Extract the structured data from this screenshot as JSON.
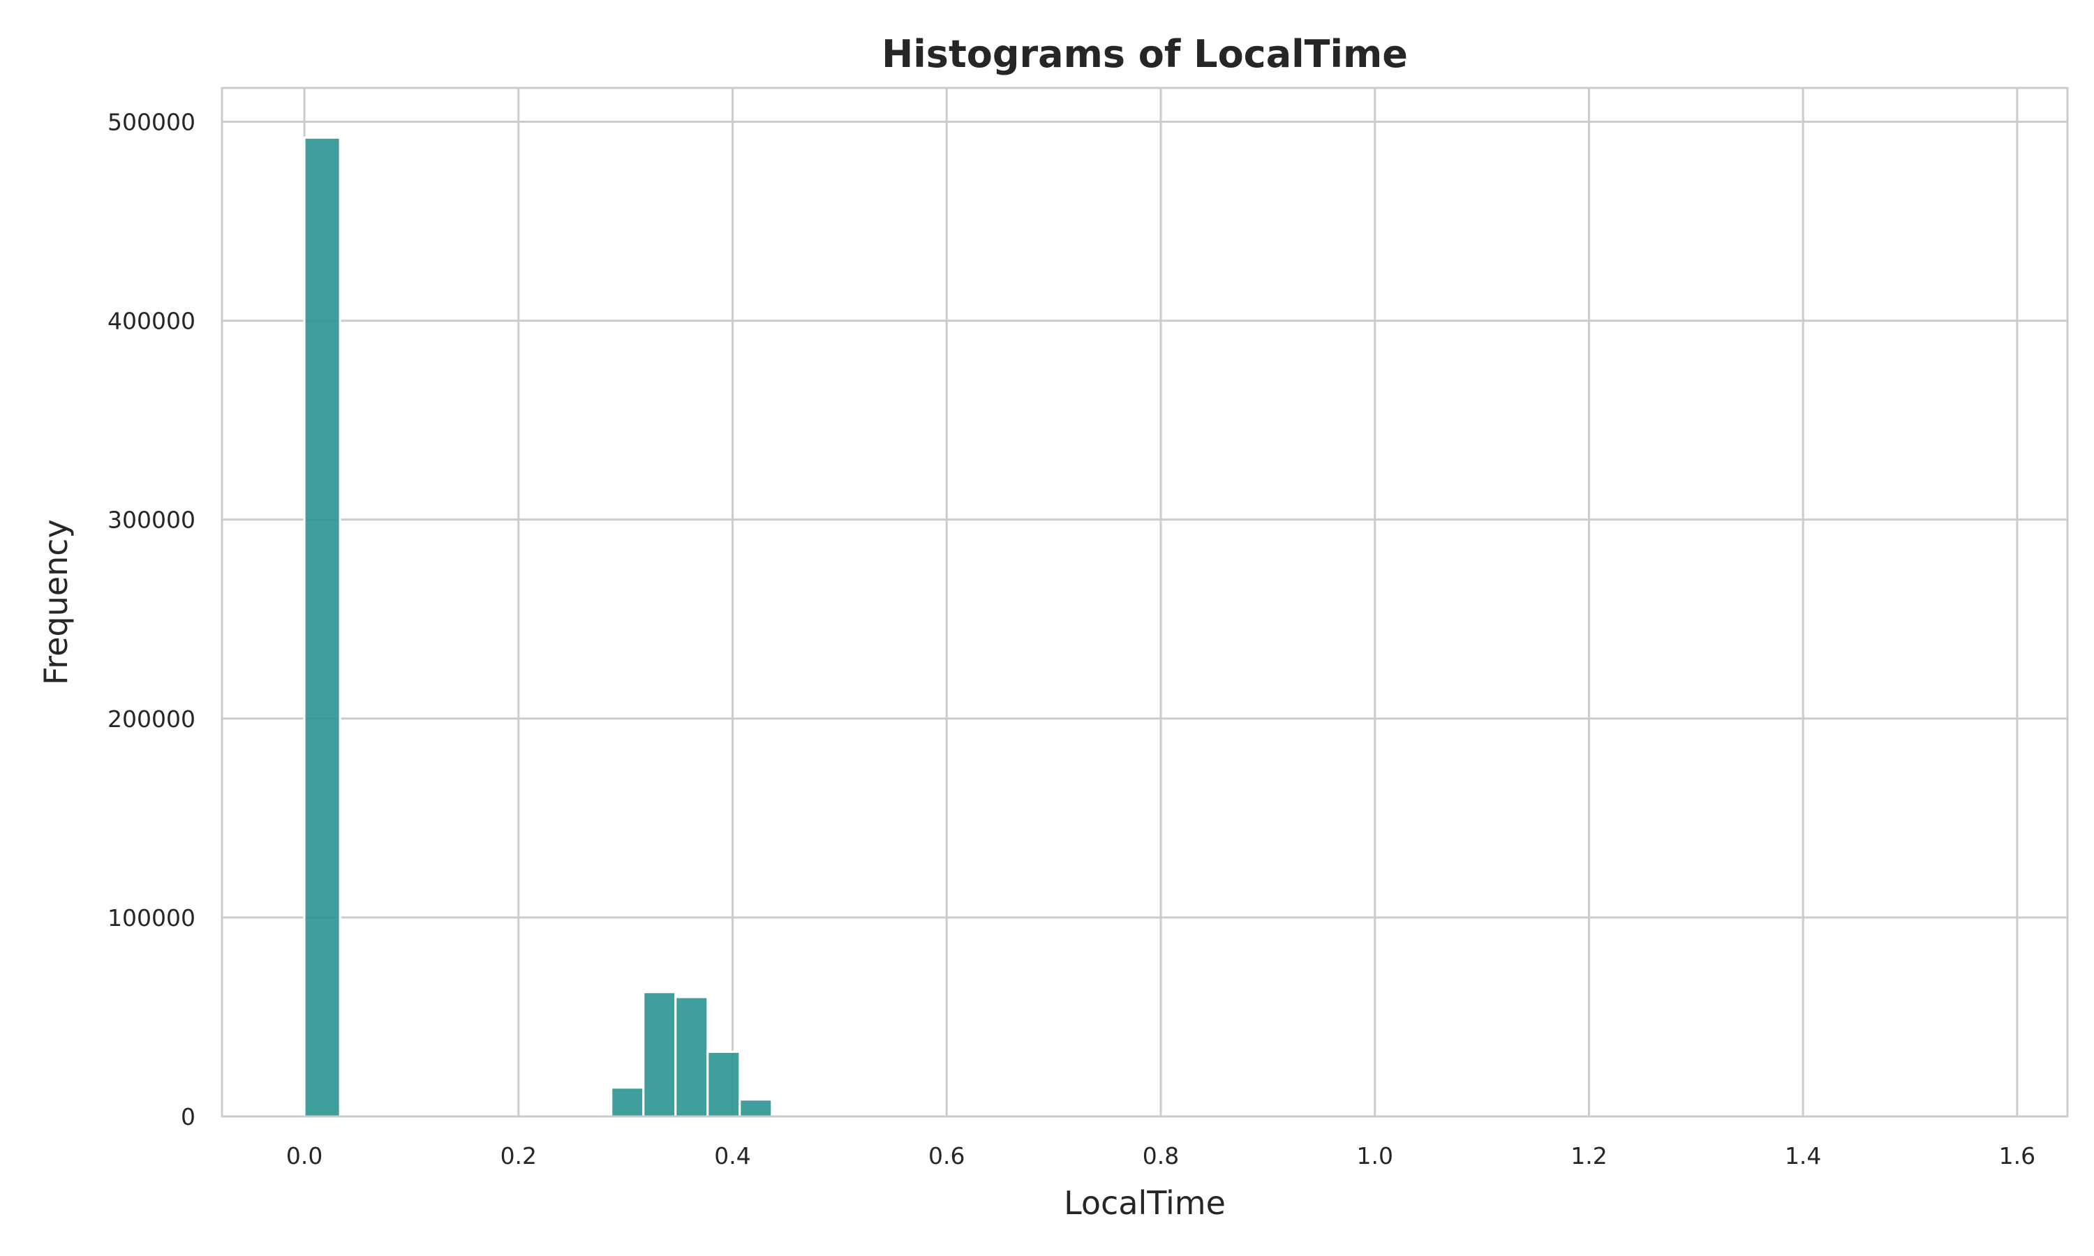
{
  "chart_data": {
    "type": "bar",
    "title": "Histograms of LocalTime",
    "xlabel": "LocalTime",
    "ylabel": "Frequency",
    "xlim": [
      -0.077,
      1.647
    ],
    "ylim": [
      0,
      517000
    ],
    "x_ticks": [
      0.0,
      0.2,
      0.4,
      0.6,
      0.8,
      1.0,
      1.2,
      1.4,
      1.6
    ],
    "x_tick_labels": [
      "0.0",
      "0.2",
      "0.4",
      "0.6",
      "0.8",
      "1.0",
      "1.2",
      "1.4",
      "1.6"
    ],
    "y_ticks": [
      0,
      100000,
      200000,
      300000,
      400000,
      500000
    ],
    "y_tick_labels": [
      "0",
      "100000",
      "200000",
      "300000",
      "400000",
      "500000"
    ],
    "grid": true,
    "bar_color": "#2a9592",
    "bins": [
      {
        "x0": 0.0,
        "x1": 0.0333,
        "value": 492000
      },
      {
        "x0": 0.2867,
        "x1": 0.3167,
        "value": 14500
      },
      {
        "x0": 0.3167,
        "x1": 0.3467,
        "value": 62500
      },
      {
        "x0": 0.3467,
        "x1": 0.3767,
        "value": 60000
      },
      {
        "x0": 0.3767,
        "x1": 0.4067,
        "value": 32500
      },
      {
        "x0": 0.4067,
        "x1": 0.4367,
        "value": 8500
      }
    ]
  }
}
